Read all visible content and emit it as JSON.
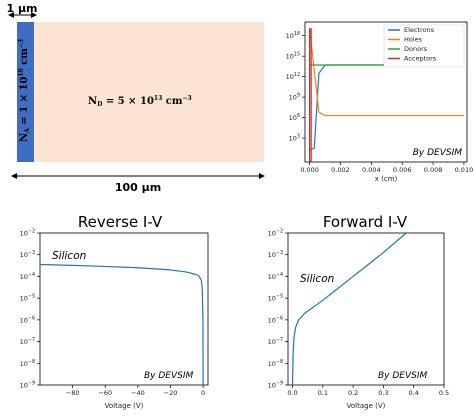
{
  "device": {
    "width_label": "1 μm",
    "length_label": "100 μm",
    "p_region": {
      "label_base": "N",
      "label_sub": "A",
      "label_rest": " = 1 × 10",
      "label_exp": "19",
      "label_unit": " cm",
      "label_unit_exp": "−3",
      "color": "#3e6dc2"
    },
    "n_region": {
      "label_base": "N",
      "label_sub": "D",
      "label_rest": " = 5 × 10",
      "label_exp": "13",
      "label_unit": " cm",
      "label_unit_exp": "−3",
      "color": "#fbe4d4"
    }
  },
  "chart_data": [
    {
      "id": "doping",
      "type": "line",
      "title": "",
      "xlabel": "x (cm)",
      "ylabel": "",
      "xlim": [
        -0.0003,
        0.0102
      ],
      "ylim_exp": [
        -0.5,
        20
      ],
      "yscale": "log",
      "x_ticks": [
        "0.000",
        "0.002",
        "0.004",
        "0.006",
        "0.008",
        "0.010"
      ],
      "y_ticks": [
        [
          "10",
          "3"
        ],
        [
          "10",
          "6"
        ],
        [
          "10",
          "9"
        ],
        [
          "10",
          "12"
        ],
        [
          "10",
          "15"
        ],
        [
          "10",
          "18"
        ]
      ],
      "legend_position": "top-right",
      "annotation": "By DEVSIM",
      "series": [
        {
          "name": "Electrons",
          "color": "#1f77b4",
          "x": [
            0,
            0.0003,
            0.0006,
            0.001,
            0.01
          ],
          "y_exp": [
            1.3,
            1.5,
            12.5,
            13.7,
            13.7
          ]
        },
        {
          "name": "Holes",
          "color": "#ff7f0e",
          "x": [
            0,
            0.0003,
            0.0006,
            0.001,
            0.01
          ],
          "y_exp": [
            19,
            13,
            6.8,
            6.3,
            6.3
          ]
        },
        {
          "name": "Donors",
          "color": "#2ca02c",
          "x": [
            0,
            0.01
          ],
          "y_exp": [
            13.7,
            13.7
          ]
        },
        {
          "name": "Acceptors",
          "color": "#d62728",
          "x": [
            0,
            0,
            0.0001,
            0.0001
          ],
          "y_exp": [
            -1,
            19,
            19,
            -1
          ]
        }
      ]
    },
    {
      "id": "reverse",
      "type": "line",
      "title": "Reverse I-V",
      "xlabel": "Voltage (V)",
      "ylabel": "",
      "xlim": [
        -100,
        3
      ],
      "ylim_exp": [
        -9,
        -2
      ],
      "yscale": "log",
      "x_ticks": [
        -80,
        -60,
        -40,
        -20,
        0
      ],
      "y_ticks": [
        [
          "10",
          "−9"
        ],
        [
          "10",
          "−8"
        ],
        [
          "10",
          "−7"
        ],
        [
          "10",
          "−6"
        ],
        [
          "10",
          "−5"
        ],
        [
          "10",
          "−4"
        ],
        [
          "10",
          "−3"
        ],
        [
          "10",
          "−2"
        ]
      ],
      "material_label": "Silicon",
      "annotation": "By DEVSIM",
      "series": [
        {
          "name": "",
          "color": "#1f77b4",
          "x": [
            -100,
            -80,
            -60,
            -40,
            -20,
            -10,
            -5,
            -3,
            -2,
            -1,
            -0.5,
            -0.1,
            0
          ],
          "y_exp": [
            -3.45,
            -3.49,
            -3.54,
            -3.6,
            -3.7,
            -3.8,
            -3.9,
            -3.95,
            -4.05,
            -4.2,
            -4.6,
            -6,
            -9
          ]
        }
      ]
    },
    {
      "id": "forward",
      "type": "line",
      "title": "Forward I-V",
      "xlabel": "Voltage (V)",
      "ylabel": "",
      "xlim": [
        -0.015,
        0.5
      ],
      "ylim_exp": [
        -9,
        -2
      ],
      "yscale": "log",
      "x_ticks": [
        "0.0",
        "0.1",
        "0.2",
        "0.3",
        "0.4",
        "0.5"
      ],
      "y_ticks": [
        [
          "10",
          "−9"
        ],
        [
          "10",
          "−8"
        ],
        [
          "10",
          "−7"
        ],
        [
          "10",
          "−6"
        ],
        [
          "10",
          "−5"
        ],
        [
          "10",
          "−4"
        ],
        [
          "10",
          "−3"
        ],
        [
          "10",
          "−2"
        ]
      ],
      "material_label": "Silicon",
      "annotation": "By DEVSIM",
      "series": [
        {
          "name": "",
          "color": "#1f77b4",
          "x": [
            0,
            0.002,
            0.005,
            0.01,
            0.02,
            0.04,
            0.06,
            0.1,
            0.15,
            0.2,
            0.25,
            0.3,
            0.35,
            0.375
          ],
          "y_exp": [
            -9,
            -7.5,
            -6.8,
            -6.35,
            -6.0,
            -5.7,
            -5.5,
            -5.1,
            -4.55,
            -4.0,
            -3.45,
            -2.9,
            -2.3,
            -2.0
          ]
        }
      ]
    }
  ]
}
